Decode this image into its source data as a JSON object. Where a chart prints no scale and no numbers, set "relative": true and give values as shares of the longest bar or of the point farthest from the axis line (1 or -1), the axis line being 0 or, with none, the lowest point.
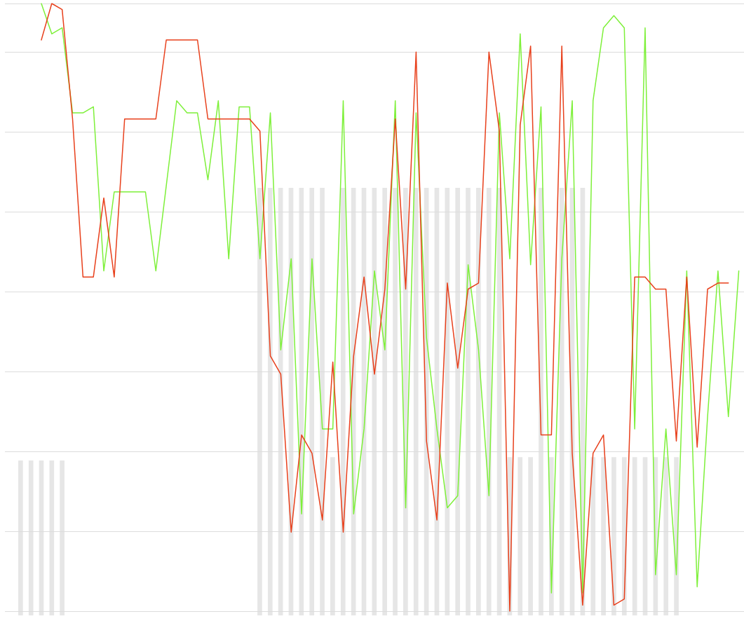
{
  "chart_data": [
    {
      "type": "bar",
      "relative": true,
      "color": "#e6e6e6",
      "categories": [
        null,
        null,
        null,
        null,
        null
      ],
      "values": [
        1,
        1,
        1,
        1,
        1
      ]
    },
    {
      "type": "bar",
      "relative": true,
      "color": "#e6e6e6",
      "categories": [
        null,
        null,
        null,
        null,
        null,
        null,
        null,
        null,
        null,
        null,
        null,
        null,
        null,
        null,
        null,
        null,
        null,
        null,
        null,
        null,
        null,
        null,
        null,
        null,
        null,
        null,
        null,
        null,
        null,
        null,
        null,
        null,
        null,
        null,
        null,
        null,
        null,
        null,
        null,
        null,
        null
      ],
      "values": [
        1,
        1,
        1,
        1,
        1,
        1,
        1,
        0.37,
        1,
        1,
        1,
        1,
        1,
        1,
        1,
        1,
        1,
        1,
        1,
        1,
        1,
        1,
        1,
        1,
        0.37,
        0.37,
        0.37,
        1,
        0.37,
        1,
        1,
        1,
        0.37,
        0.37,
        0.37,
        0.37,
        0.37,
        0.37,
        0.37,
        0.37,
        0.37
      ]
    },
    {
      "type": "line",
      "relative": true,
      "grid": "y",
      "marker": "none",
      "line_style": "solid",
      "categories": [
        null,
        null,
        null,
        null,
        null,
        null,
        null,
        null,
        null,
        null,
        null,
        null,
        null,
        null,
        null,
        null,
        null,
        null,
        null,
        null,
        null,
        null,
        null,
        null,
        null,
        null,
        null,
        null,
        null,
        null,
        null,
        null,
        null,
        null,
        null,
        null,
        null,
        null,
        null,
        null,
        null,
        null,
        null,
        null,
        null,
        null,
        null,
        null,
        null,
        null,
        null,
        null,
        null,
        null,
        null,
        null,
        null,
        null,
        null,
        null,
        null,
        null,
        null,
        null,
        null,
        null,
        null,
        null,
        null,
        null,
        null
      ],
      "series": [
        {
          "color": "#7ef03a",
          "values": [
            null,
            null,
            null,
            1.0,
            0.95,
            0.96,
            0.82,
            0.82,
            0.83,
            0.56,
            0.69,
            0.69,
            0.69,
            0.69,
            0.56,
            0.7,
            0.84,
            0.82,
            0.82,
            0.71,
            0.84,
            0.58,
            0.83,
            0.83,
            0.58,
            0.82,
            0.43,
            0.58,
            0.16,
            0.58,
            0.3,
            0.3,
            0.84,
            0.16,
            0.3,
            0.56,
            0.43,
            0.84,
            0.17,
            0.82,
            0.45,
            0.3,
            0.17,
            0.19,
            0.57,
            0.43,
            0.19,
            0.82,
            0.58,
            0.95,
            0.57,
            0.83,
            0.03,
            0.58,
            0.84,
            0.03,
            0.84,
            0.96,
            0.98,
            0.96,
            0.3,
            0.96,
            0.06,
            0.3,
            0.06,
            0.56,
            0.04,
            0.32,
            0.56,
            0.32,
            0.56
          ]
        },
        {
          "color": "#e8401c",
          "values": [
            null,
            null,
            null,
            0.94,
            1.0,
            0.99,
            0.81,
            0.55,
            0.55,
            0.68,
            0.55,
            0.81,
            0.81,
            0.81,
            0.81,
            0.94,
            0.94,
            0.94,
            0.94,
            0.81,
            0.81,
            0.81,
            0.81,
            0.81,
            0.79,
            0.42,
            0.39,
            0.13,
            0.29,
            0.26,
            0.15,
            0.41,
            0.13,
            0.42,
            0.55,
            0.39,
            0.53,
            0.81,
            0.53,
            0.92,
            0.28,
            0.15,
            0.54,
            0.4,
            0.53,
            0.54,
            0.92,
            0.79,
            0,
            0.8,
            0.93,
            0.29,
            0.29,
            0.93,
            0.26,
            0.01,
            0.26,
            0.29,
            0.01,
            0.02,
            0.55,
            0.55,
            0.53,
            0.53,
            0.28,
            0.55,
            0.27,
            0.53,
            0.54,
            0.54,
            null
          ]
        }
      ]
    }
  ]
}
